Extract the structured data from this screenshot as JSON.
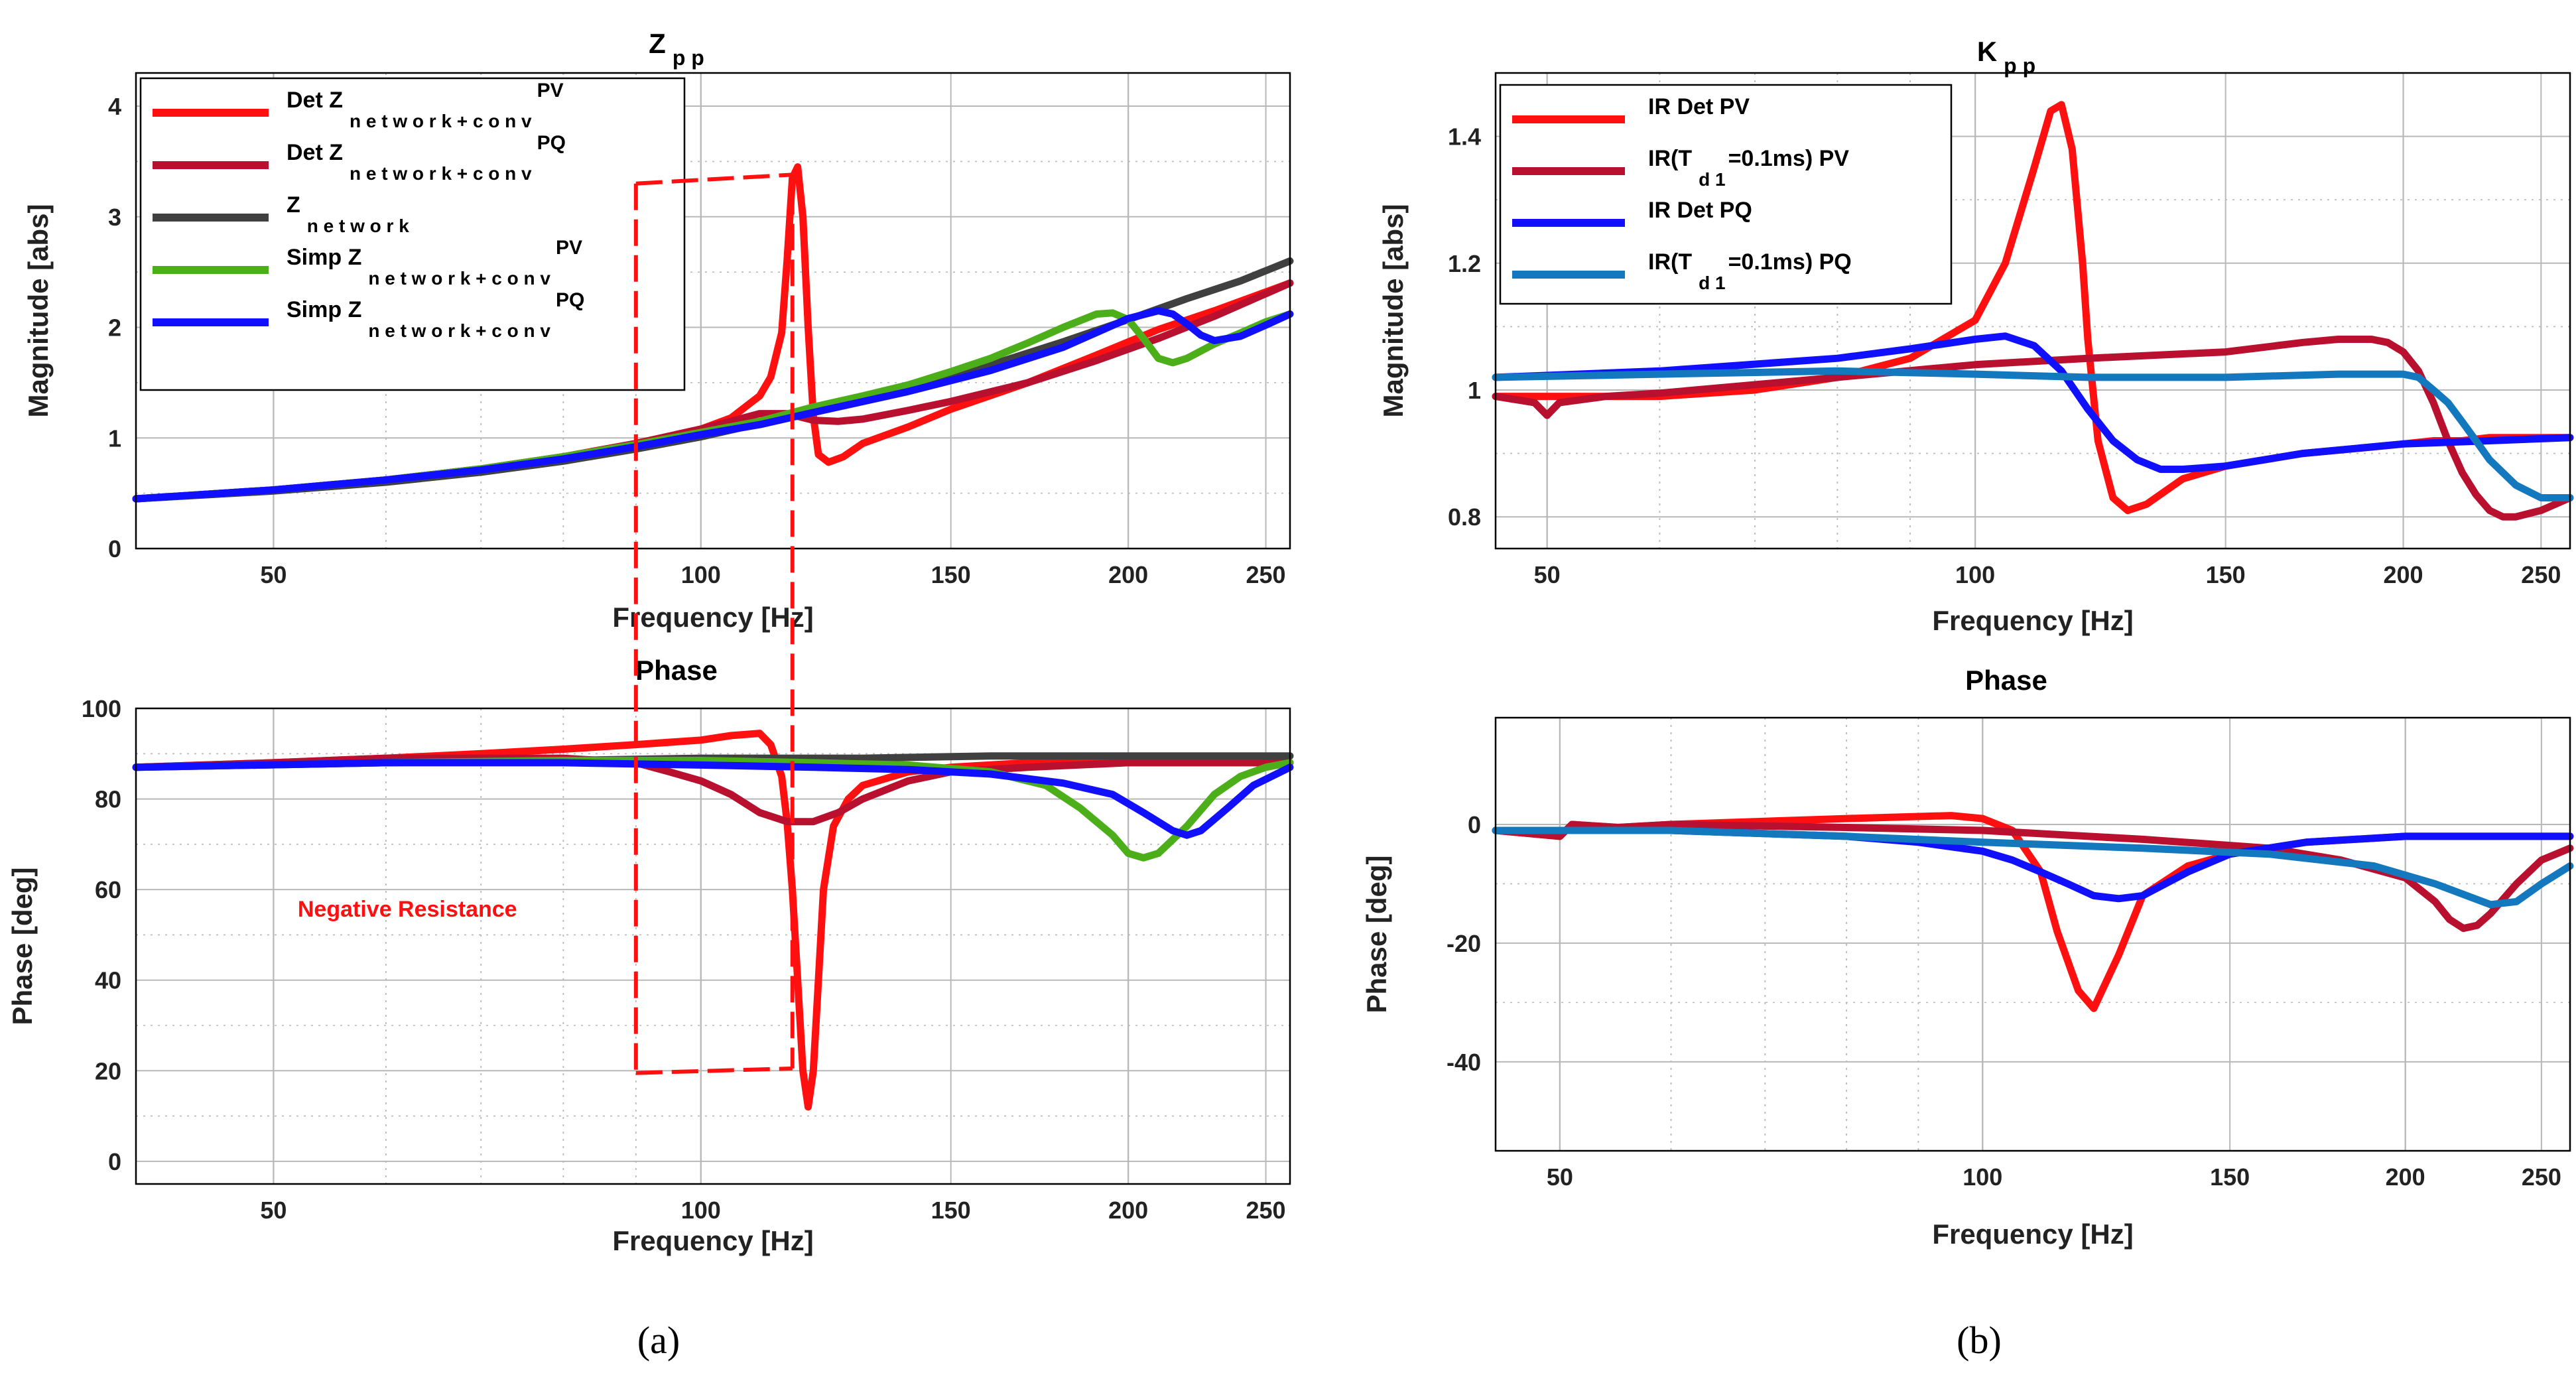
{
  "colors": {
    "red": "#ff1010",
    "darkred": "#b8102e",
    "gray": "#404040",
    "green": "#4caf1a",
    "blue": "#1010ff",
    "lightblue": "#1478be",
    "grid": "#b8b8b8"
  },
  "chart_data": [
    {
      "id": "a_mag",
      "type": "line",
      "title": "Z",
      "title_sub": "p p",
      "xlabel": "Frequency [Hz]",
      "ylabel": "Magnitude [abs]",
      "xscale": "log",
      "xlim": [
        40,
        260
      ],
      "ylim": [
        0,
        4.3
      ],
      "xticks": [
        50,
        100,
        150,
        200,
        250
      ],
      "yticks": [
        0,
        1,
        2,
        3,
        4
      ],
      "grid": true,
      "legend_position": "top-left",
      "series": [
        {
          "name": "Det Z network+conv PV",
          "legend": {
            "a": "Det  Z",
            "sub": "n e t w o r k + c o n v",
            "sup": "PV"
          },
          "color": "red",
          "x": [
            40,
            50,
            60,
            70,
            80,
            90,
            100,
            105,
            110,
            112,
            114,
            115,
            116,
            117,
            118,
            119,
            120,
            121,
            123,
            126,
            130,
            140,
            150,
            170,
            190,
            210,
            230,
            260
          ],
          "y": [
            0.45,
            0.53,
            0.62,
            0.72,
            0.83,
            0.95,
            1.08,
            1.18,
            1.38,
            1.55,
            1.95,
            2.6,
            3.35,
            3.45,
            3.0,
            2.0,
            1.2,
            0.85,
            0.78,
            0.83,
            0.95,
            1.1,
            1.26,
            1.5,
            1.75,
            1.98,
            2.15,
            2.4
          ]
        },
        {
          "name": "Det Z network+conv PQ",
          "legend": {
            "a": "Det  Z",
            "sub": "n e t w o r k + c o n v",
            "sup": "PQ"
          },
          "color": "darkred",
          "x": [
            40,
            50,
            60,
            70,
            80,
            90,
            100,
            105,
            110,
            115,
            120,
            125,
            130,
            140,
            150,
            170,
            190,
            210,
            230,
            260
          ],
          "y": [
            0.45,
            0.53,
            0.62,
            0.72,
            0.83,
            0.95,
            1.08,
            1.15,
            1.22,
            1.22,
            1.16,
            1.15,
            1.17,
            1.25,
            1.33,
            1.5,
            1.7,
            1.9,
            2.1,
            2.4
          ]
        },
        {
          "name": "Z network",
          "legend": {
            "a": "Z",
            "sub": "n e t w o r k",
            "sup": ""
          },
          "color": "gray",
          "x": [
            40,
            50,
            60,
            70,
            80,
            90,
            100,
            120,
            140,
            160,
            180,
            200,
            220,
            240,
            260
          ],
          "y": [
            0.45,
            0.52,
            0.6,
            0.69,
            0.79,
            0.9,
            1.01,
            1.24,
            1.45,
            1.66,
            1.87,
            2.07,
            2.26,
            2.42,
            2.6
          ]
        },
        {
          "name": "Simp Z network+conv PV",
          "legend": {
            "a": "Simp  Z",
            "sub": "n e t w o r k + c o n v",
            "sup": "PV"
          },
          "color": "green",
          "x": [
            40,
            50,
            60,
            70,
            80,
            90,
            100,
            110,
            120,
            130,
            140,
            150,
            160,
            170,
            180,
            190,
            195,
            200,
            205,
            210,
            215,
            220,
            230,
            240,
            250,
            260
          ],
          "y": [
            0.45,
            0.53,
            0.62,
            0.72,
            0.83,
            0.94,
            1.05,
            1.15,
            1.28,
            1.38,
            1.48,
            1.6,
            1.72,
            1.86,
            2.0,
            2.12,
            2.13,
            2.07,
            1.9,
            1.72,
            1.68,
            1.72,
            1.85,
            1.95,
            2.05,
            2.12
          ]
        },
        {
          "name": "Simp Z network+conv PQ",
          "legend": {
            "a": "Simp  Z",
            "sub": "n e t w o r k + c o n v",
            "sup": "PQ"
          },
          "color": "blue",
          "x": [
            40,
            50,
            60,
            70,
            80,
            90,
            100,
            110,
            120,
            140,
            160,
            180,
            200,
            210,
            215,
            220,
            225,
            230,
            240,
            250,
            260
          ],
          "y": [
            0.45,
            0.53,
            0.62,
            0.71,
            0.81,
            0.92,
            1.03,
            1.12,
            1.23,
            1.42,
            1.61,
            1.82,
            2.08,
            2.15,
            2.12,
            2.03,
            1.93,
            1.88,
            1.92,
            2.02,
            2.12
          ]
        }
      ]
    },
    {
      "id": "a_phase",
      "type": "line",
      "title": "Phase",
      "xlabel": "Frequency [Hz]",
      "ylabel": "Phase [deg]",
      "xscale": "log",
      "xlim": [
        40,
        260
      ],
      "ylim": [
        -5,
        100
      ],
      "xticks": [
        50,
        100,
        150,
        200,
        250
      ],
      "yticks": [
        0,
        20,
        40,
        60,
        80,
        100
      ],
      "grid": true,
      "annotation": "Negative Resistance",
      "series": [
        {
          "name": "Det Z network+conv PV",
          "color": "red",
          "x": [
            40,
            50,
            60,
            70,
            80,
            90,
            100,
            105,
            110,
            112,
            114,
            115,
            116,
            117,
            118,
            119,
            120,
            121,
            122,
            124,
            127,
            130,
            140,
            150,
            170,
            200,
            230,
            260
          ],
          "y": [
            87,
            88,
            89,
            90,
            91,
            92,
            93,
            94,
            94.5,
            92,
            85,
            75,
            60,
            40,
            20,
            12,
            20,
            40,
            60,
            74,
            80,
            83,
            86,
            87,
            88,
            88,
            88,
            88
          ]
        },
        {
          "name": "Det Z network+conv PQ",
          "color": "darkred",
          "x": [
            40,
            50,
            60,
            70,
            80,
            90,
            95,
            100,
            105,
            110,
            115,
            120,
            125,
            130,
            140,
            150,
            170,
            200,
            230,
            260
          ],
          "y": [
            87,
            88,
            89,
            89,
            89,
            88,
            86,
            84,
            81,
            77,
            75,
            75,
            77,
            80,
            84,
            86,
            87,
            88,
            88,
            88
          ]
        },
        {
          "name": "Z network",
          "color": "gray",
          "x": [
            40,
            60,
            80,
            100,
            130,
            160,
            200,
            230,
            260
          ],
          "y": [
            87,
            88,
            88.5,
            89,
            89,
            89.5,
            89.5,
            89.5,
            89.5
          ]
        },
        {
          "name": "Simp Z network+conv PV",
          "color": "green",
          "x": [
            40,
            60,
            80,
            100,
            120,
            140,
            160,
            175,
            185,
            195,
            200,
            205,
            210,
            220,
            230,
            240,
            250,
            260
          ],
          "y": [
            87,
            88,
            88.5,
            88.5,
            88,
            87.5,
            86,
            83,
            78,
            72,
            68,
            67,
            68,
            74,
            81,
            85,
            87,
            88
          ]
        },
        {
          "name": "Simp Z network+conv PQ",
          "color": "blue",
          "x": [
            40,
            60,
            80,
            100,
            120,
            140,
            160,
            180,
            195,
            205,
            215,
            220,
            225,
            235,
            245,
            260
          ],
          "y": [
            87,
            88,
            88,
            87.5,
            87,
            86.5,
            85.5,
            83.5,
            81,
            77,
            73,
            72,
            73,
            78,
            83,
            87
          ]
        }
      ]
    },
    {
      "id": "b_mag",
      "type": "line",
      "title": "K",
      "title_sub": "p p",
      "xlabel": "Frequency [Hz]",
      "ylabel": "Magnitude [abs]",
      "xscale": "log",
      "xlim": [
        46,
        262
      ],
      "ylim": [
        0.75,
        1.5
      ],
      "xticks": [
        50,
        100,
        150,
        200,
        250
      ],
      "yticks": [
        0.8,
        1,
        1.2,
        1.4
      ],
      "grid": true,
      "legend_position": "top-left",
      "series": [
        {
          "name": "IR Det PV",
          "legend": {
            "a": "IR Det PV",
            "sub": "",
            "sup": ""
          },
          "color": "red",
          "x": [
            46,
            50,
            60,
            70,
            80,
            90,
            100,
            105,
            110,
            113,
            115,
            117,
            119,
            120,
            122,
            125,
            128,
            132,
            140,
            150,
            170,
            190,
            200,
            210,
            220,
            230,
            240,
            250,
            262
          ],
          "y": [
            0.99,
            0.99,
            0.99,
            1.0,
            1.02,
            1.05,
            1.11,
            1.2,
            1.35,
            1.44,
            1.45,
            1.38,
            1.2,
            1.08,
            0.92,
            0.83,
            0.81,
            0.82,
            0.86,
            0.88,
            0.9,
            0.91,
            0.915,
            0.92,
            0.92,
            0.925,
            0.925,
            0.925,
            0.925
          ]
        },
        {
          "name": "IR(Td1=0.1ms) PV",
          "legend": {
            "a": "IR(T",
            "sub": "d 1",
            "sup": "",
            "b": "=0.1ms) PV"
          },
          "color": "darkred",
          "x": [
            46,
            49,
            50,
            51,
            55,
            60,
            80,
            100,
            120,
            150,
            170,
            180,
            190,
            195,
            200,
            205,
            210,
            215,
            220,
            225,
            230,
            235,
            240,
            250,
            262
          ],
          "y": [
            0.99,
            0.98,
            0.96,
            0.98,
            0.99,
            0.995,
            1.02,
            1.04,
            1.05,
            1.06,
            1.075,
            1.08,
            1.08,
            1.075,
            1.06,
            1.03,
            0.98,
            0.92,
            0.87,
            0.835,
            0.81,
            0.8,
            0.8,
            0.81,
            0.83
          ]
        },
        {
          "name": "IR Det PQ",
          "legend": {
            "a": " IR Det PQ",
            "sub": "",
            "sup": ""
          },
          "color": "blue",
          "x": [
            46,
            60,
            80,
            90,
            100,
            105,
            110,
            115,
            120,
            125,
            130,
            135,
            140,
            150,
            170,
            200,
            230,
            262
          ],
          "y": [
            1.02,
            1.03,
            1.05,
            1.065,
            1.08,
            1.085,
            1.07,
            1.03,
            0.97,
            0.92,
            0.89,
            0.875,
            0.875,
            0.88,
            0.9,
            0.915,
            0.92,
            0.925
          ]
        },
        {
          "name": "IR(Td1=0.1ms) PQ",
          "legend": {
            "a": "IR(T",
            "sub": "d 1",
            "sup": "",
            "b": "=0.1ms) PQ"
          },
          "color": "lightblue",
          "x": [
            46,
            60,
            80,
            100,
            120,
            150,
            180,
            200,
            205,
            210,
            215,
            220,
            225,
            230,
            240,
            250,
            262
          ],
          "y": [
            1.02,
            1.025,
            1.03,
            1.025,
            1.02,
            1.02,
            1.025,
            1.025,
            1.02,
            1.0,
            0.98,
            0.95,
            0.92,
            0.89,
            0.85,
            0.83,
            0.83
          ]
        }
      ]
    },
    {
      "id": "b_phase",
      "type": "line",
      "title": "Phase",
      "xlabel": "Frequency [Hz]",
      "ylabel": "Phase [deg]",
      "xscale": "log",
      "xlim": [
        45,
        262
      ],
      "ylim": [
        -55,
        18
      ],
      "xticks": [
        50,
        100,
        150,
        200,
        250
      ],
      "yticks": [
        0,
        -20,
        -40
      ],
      "grid": true,
      "series": [
        {
          "name": "IR Det PV",
          "color": "red",
          "x": [
            45,
            50,
            51,
            55,
            60,
            80,
            95,
            100,
            105,
            110,
            113,
            117,
            120,
            125,
            130,
            140,
            150,
            170,
            200,
            230,
            262
          ],
          "y": [
            -1,
            -2,
            0,
            -0.5,
            0,
            1,
            1.5,
            1,
            -1,
            -8,
            -18,
            -28,
            -31,
            -22,
            -12,
            -7,
            -5,
            -3,
            -2,
            -2,
            -2
          ]
        },
        {
          "name": "IR(Td1=0.1ms) PV",
          "color": "darkred",
          "x": [
            45,
            50,
            51,
            55,
            60,
            80,
            100,
            130,
            160,
            180,
            200,
            210,
            215,
            220,
            225,
            230,
            240,
            250,
            262
          ],
          "y": [
            -1,
            -2,
            0,
            -0.5,
            0,
            -0.5,
            -1,
            -2.5,
            -4,
            -6,
            -9,
            -13,
            -16,
            -17.5,
            -17,
            -15,
            -10,
            -6,
            -4
          ]
        },
        {
          "name": "IR Det PQ",
          "color": "blue",
          "x": [
            45,
            60,
            80,
            90,
            100,
            105,
            110,
            115,
            120,
            125,
            130,
            140,
            150,
            170,
            200,
            230,
            262
          ],
          "y": [
            -1,
            -1,
            -2,
            -3,
            -4.5,
            -6,
            -8,
            -10,
            -12,
            -12.5,
            -12,
            -8,
            -5,
            -3,
            -2,
            -2,
            -2
          ]
        },
        {
          "name": "IR(Td1=0.1ms) PQ",
          "color": "lightblue",
          "x": [
            45,
            60,
            80,
            100,
            130,
            160,
            190,
            210,
            230,
            240,
            250,
            262
          ],
          "y": [
            -1,
            -1,
            -2,
            -3,
            -4,
            -5,
            -7,
            -10,
            -13.5,
            -13,
            -10,
            -7
          ]
        }
      ]
    }
  ],
  "captions": {
    "a": "(a)",
    "b": "(b)"
  }
}
